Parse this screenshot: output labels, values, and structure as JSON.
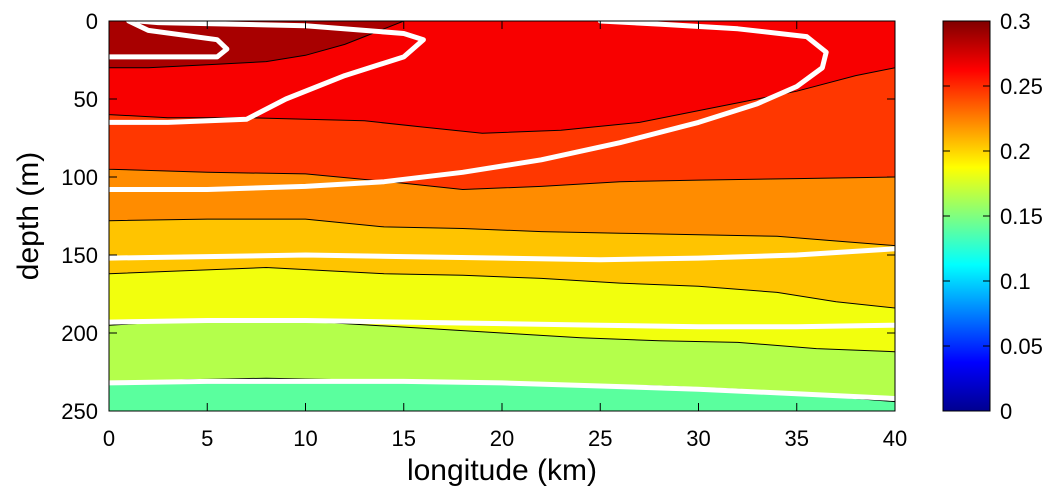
{
  "chart_data": {
    "type": "heatmap",
    "xlabel": "longitude (km)",
    "ylabel": "depth (m)",
    "xlim": [
      0,
      40
    ],
    "ylim": [
      0,
      250
    ],
    "y_reversed": true,
    "x_ticks": [
      0,
      5,
      10,
      15,
      20,
      25,
      30,
      35,
      40
    ],
    "y_ticks": [
      0,
      50,
      100,
      150,
      200,
      250
    ],
    "colorbar": {
      "colormap": "jet",
      "range": [
        0,
        0.3
      ],
      "ticks": [
        0,
        0.05,
        0.1,
        0.15,
        0.2,
        0.25,
        0.3
      ]
    },
    "filled_bands": [
      {
        "value": 0.29,
        "color": "#a80000",
        "boundary": [
          [
            0,
            30
          ],
          [
            2,
            30
          ],
          [
            5,
            28
          ],
          [
            8,
            26
          ],
          [
            10,
            22
          ],
          [
            12,
            15
          ],
          [
            13,
            10
          ],
          [
            14,
            5
          ],
          [
            15,
            0
          ],
          [
            0,
            0
          ]
        ]
      },
      {
        "value": 0.27,
        "color": "#f80000",
        "lower": [
          [
            0,
            60
          ],
          [
            3,
            62
          ],
          [
            7,
            62
          ],
          [
            10,
            63
          ],
          [
            13,
            64
          ],
          [
            16,
            68
          ],
          [
            19,
            72
          ],
          [
            23,
            70
          ],
          [
            27,
            65
          ],
          [
            31,
            55
          ],
          [
            35,
            45
          ],
          [
            38,
            35
          ],
          [
            40,
            30
          ]
        ]
      },
      {
        "value": 0.25,
        "color": "#ff3700",
        "lower": [
          [
            0,
            95
          ],
          [
            5,
            97
          ],
          [
            10,
            98
          ],
          [
            15,
            104
          ],
          [
            18,
            108
          ],
          [
            22,
            106
          ],
          [
            26,
            103
          ],
          [
            30,
            102
          ],
          [
            35,
            101
          ],
          [
            40,
            100
          ]
        ]
      },
      {
        "value": 0.225,
        "color": "#ff8c00",
        "lower": [
          [
            0,
            128
          ],
          [
            5,
            127
          ],
          [
            10,
            127
          ],
          [
            14,
            132
          ],
          [
            18,
            133
          ],
          [
            22,
            135
          ],
          [
            26,
            136
          ],
          [
            30,
            137
          ],
          [
            34,
            138
          ],
          [
            37,
            141
          ],
          [
            40,
            144
          ]
        ]
      },
      {
        "value": 0.2,
        "color": "#ffc400",
        "lower": [
          [
            0,
            162
          ],
          [
            4,
            160
          ],
          [
            8,
            158
          ],
          [
            11,
            160
          ],
          [
            14,
            162
          ],
          [
            18,
            163
          ],
          [
            22,
            165
          ],
          [
            26,
            168
          ],
          [
            30,
            170
          ],
          [
            34,
            174
          ],
          [
            37,
            180
          ],
          [
            40,
            184
          ]
        ]
      },
      {
        "value": 0.18,
        "color": "#f2ff0d",
        "lower": [
          [
            0,
            195
          ],
          [
            4,
            192
          ],
          [
            8,
            191
          ],
          [
            12,
            194
          ],
          [
            16,
            197
          ],
          [
            20,
            200
          ],
          [
            24,
            203
          ],
          [
            28,
            205
          ],
          [
            32,
            206
          ],
          [
            36,
            210
          ],
          [
            40,
            212
          ]
        ]
      },
      {
        "value": 0.16,
        "color": "#b4ff4b",
        "lower": [
          [
            0,
            232
          ],
          [
            4,
            230
          ],
          [
            8,
            229
          ],
          [
            12,
            230
          ],
          [
            16,
            231
          ],
          [
            20,
            232
          ],
          [
            24,
            233
          ],
          [
            28,
            234
          ],
          [
            32,
            236
          ],
          [
            36,
            240
          ],
          [
            40,
            244
          ]
        ]
      },
      {
        "value": 0.14,
        "color": "#5aff9e"
      }
    ],
    "white_contours": [
      [
        [
          1.5,
          0
        ],
        [
          2.5,
          1
        ],
        [
          10,
          3
        ],
        [
          15,
          8
        ],
        [
          16,
          12
        ],
        [
          15,
          23
        ],
        [
          12,
          35
        ],
        [
          9,
          50
        ],
        [
          7,
          63
        ],
        [
          3,
          65
        ],
        [
          0,
          65
        ]
      ],
      [
        [
          0,
          23
        ],
        [
          5.5,
          23
        ],
        [
          6,
          18
        ],
        [
          5.5,
          12
        ],
        [
          2,
          6
        ],
        [
          1,
          0
        ]
      ],
      [
        [
          25,
          0
        ],
        [
          28,
          2
        ],
        [
          32,
          5
        ],
        [
          35.5,
          10
        ],
        [
          36.5,
          20
        ],
        [
          36.3,
          30
        ],
        [
          35,
          42
        ],
        [
          33,
          53
        ],
        [
          30,
          65
        ],
        [
          26,
          78
        ],
        [
          22,
          89
        ],
        [
          18,
          97
        ],
        [
          14,
          103
        ],
        [
          10,
          106
        ],
        [
          5,
          108
        ],
        [
          0,
          108
        ]
      ],
      [
        [
          0,
          152
        ],
        [
          5,
          151
        ],
        [
          10,
          150
        ],
        [
          15,
          151
        ],
        [
          20,
          152
        ],
        [
          25,
          153
        ],
        [
          30,
          152
        ],
        [
          35,
          150
        ],
        [
          40,
          146
        ]
      ],
      [
        [
          0,
          193
        ],
        [
          5,
          192
        ],
        [
          10,
          192
        ],
        [
          15,
          193
        ],
        [
          20,
          194
        ],
        [
          25,
          195
        ],
        [
          30,
          196
        ],
        [
          35,
          196
        ],
        [
          40,
          195
        ]
      ],
      [
        [
          0,
          232
        ],
        [
          5,
          231
        ],
        [
          10,
          231
        ],
        [
          15,
          231
        ],
        [
          20,
          232
        ],
        [
          25,
          234
        ],
        [
          30,
          236
        ],
        [
          35,
          239
        ],
        [
          40,
          242
        ]
      ]
    ]
  }
}
